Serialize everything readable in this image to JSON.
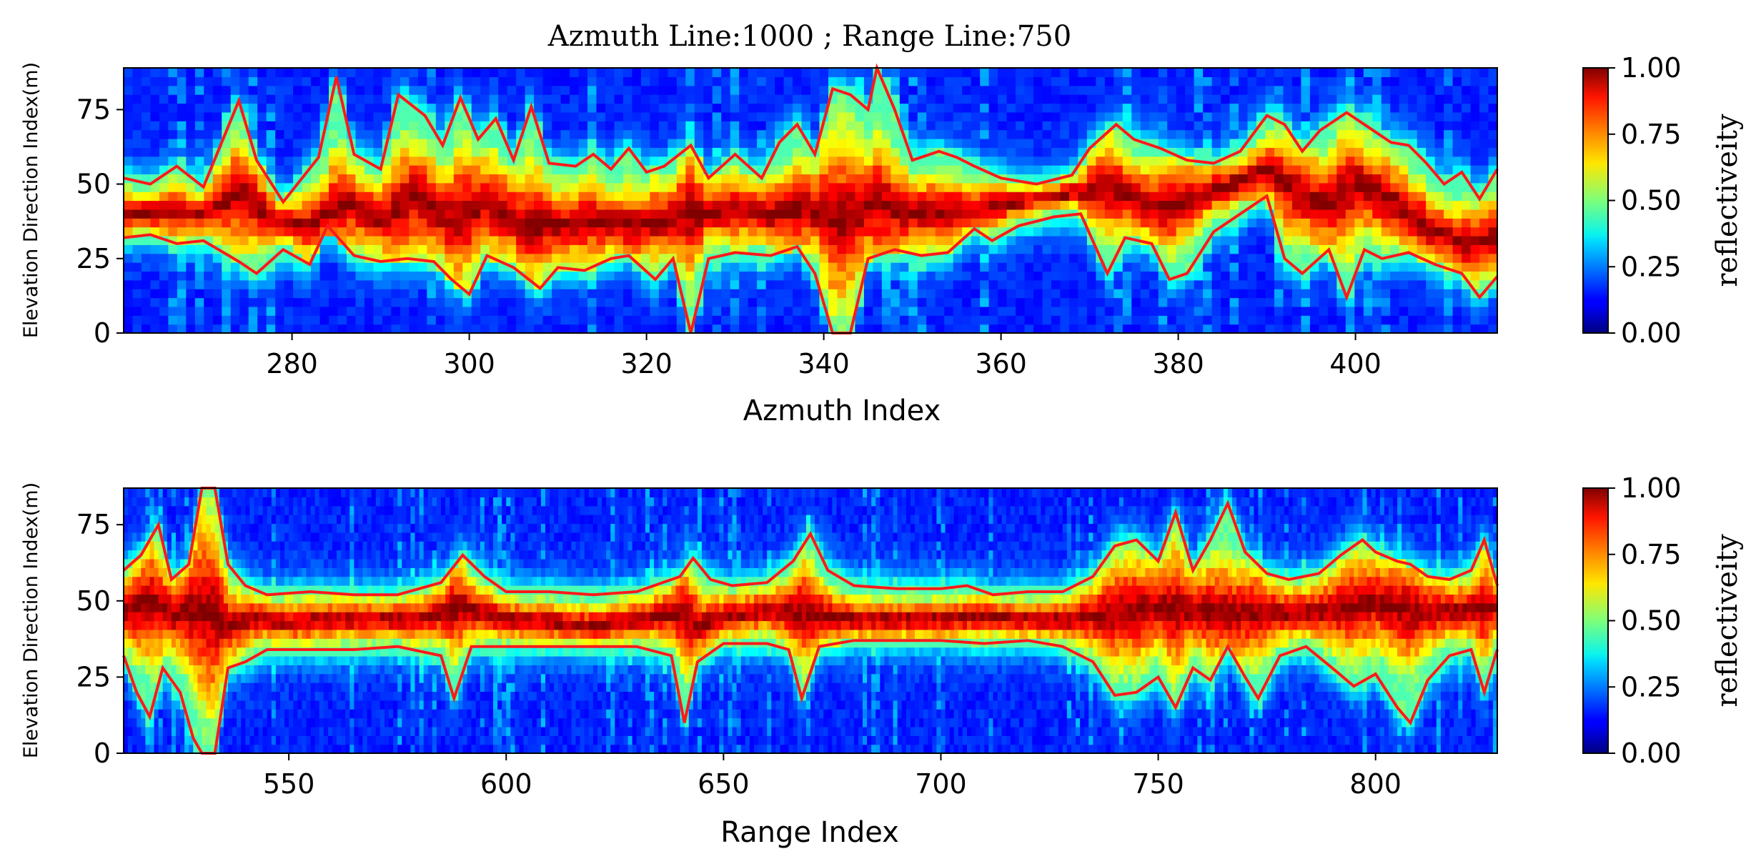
{
  "figure": {
    "title": "Azmuth Line:1000 ; Range Line:750"
  },
  "colors": {
    "colormap": "jet",
    "contour": "#ff1a1a"
  },
  "chart_data": [
    {
      "type": "heatmap",
      "name": "azimuth-profile",
      "xlabel": "Azmuth Index",
      "ylabel": "Elevation Direction Index(m)",
      "xlim": [
        261,
        416
      ],
      "ylim": [
        0,
        89
      ],
      "xticks": [
        280,
        300,
        320,
        340,
        360,
        380,
        400
      ],
      "yticks": [
        0,
        25,
        50,
        75
      ],
      "colorbar": {
        "label": "reflectiveity",
        "range": [
          0,
          1
        ],
        "ticks": [
          "0.00",
          "0.25",
          "0.50",
          "0.75",
          "1.00"
        ]
      },
      "center_profile": [
        [
          261,
          40
        ],
        [
          266,
          41
        ],
        [
          270,
          40
        ],
        [
          274,
          47
        ],
        [
          278,
          38
        ],
        [
          282,
          36
        ],
        [
          286,
          44
        ],
        [
          290,
          38
        ],
        [
          294,
          46
        ],
        [
          298,
          38
        ],
        [
          302,
          44
        ],
        [
          306,
          37
        ],
        [
          310,
          36
        ],
        [
          314,
          38
        ],
        [
          318,
          36
        ],
        [
          322,
          38
        ],
        [
          325,
          40
        ],
        [
          330,
          42
        ],
        [
          334,
          40
        ],
        [
          338,
          42
        ],
        [
          342,
          38
        ],
        [
          346,
          44
        ],
        [
          350,
          40
        ],
        [
          354,
          41
        ],
        [
          358,
          42
        ],
        [
          362,
          44
        ],
        [
          366,
          46
        ],
        [
          370,
          48
        ],
        [
          372,
          50
        ],
        [
          376,
          44
        ],
        [
          379,
          42
        ],
        [
          382,
          46
        ],
        [
          386,
          50
        ],
        [
          390,
          55
        ],
        [
          393,
          48
        ],
        [
          397,
          42
        ],
        [
          400,
          50
        ],
        [
          404,
          45
        ],
        [
          408,
          36
        ],
        [
          412,
          30
        ],
        [
          416,
          32
        ]
      ],
      "upper_contour": [
        [
          261,
          52
        ],
        [
          264,
          50
        ],
        [
          267,
          56
        ],
        [
          270,
          49
        ],
        [
          274,
          78
        ],
        [
          276,
          58
        ],
        [
          279,
          44
        ],
        [
          283,
          59
        ],
        [
          285,
          86
        ],
        [
          287,
          60
        ],
        [
          290,
          55
        ],
        [
          292,
          80
        ],
        [
          295,
          73
        ],
        [
          297,
          63
        ],
        [
          299,
          79
        ],
        [
          301,
          65
        ],
        [
          303,
          72
        ],
        [
          305,
          58
        ],
        [
          307,
          76
        ],
        [
          309,
          57
        ],
        [
          312,
          56
        ],
        [
          314,
          60
        ],
        [
          316,
          55
        ],
        [
          318,
          62
        ],
        [
          320,
          54
        ],
        [
          322,
          56
        ],
        [
          325,
          63
        ],
        [
          327,
          52
        ],
        [
          330,
          60
        ],
        [
          333,
          52
        ],
        [
          335,
          64
        ],
        [
          337,
          70
        ],
        [
          339,
          60
        ],
        [
          341,
          82
        ],
        [
          343,
          80
        ],
        [
          345,
          75
        ],
        [
          346,
          89
        ],
        [
          348,
          75
        ],
        [
          350,
          58
        ],
        [
          353,
          61
        ],
        [
          355,
          59
        ],
        [
          357,
          56
        ],
        [
          360,
          52
        ],
        [
          364,
          50
        ],
        [
          368,
          53
        ],
        [
          370,
          62
        ],
        [
          373,
          70
        ],
        [
          375,
          65
        ],
        [
          378,
          62
        ],
        [
          381,
          58
        ],
        [
          384,
          57
        ],
        [
          387,
          61
        ],
        [
          390,
          73
        ],
        [
          392,
          70
        ],
        [
          394,
          61
        ],
        [
          396,
          68
        ],
        [
          399,
          74
        ],
        [
          401,
          70
        ],
        [
          404,
          64
        ],
        [
          406,
          63
        ],
        [
          408,
          57
        ],
        [
          410,
          50
        ],
        [
          412,
          54
        ],
        [
          414,
          45
        ],
        [
          416,
          55
        ]
      ],
      "lower_contour": [
        [
          261,
          32
        ],
        [
          264,
          33
        ],
        [
          267,
          30
        ],
        [
          270,
          31
        ],
        [
          274,
          24
        ],
        [
          276,
          20
        ],
        [
          279,
          28
        ],
        [
          282,
          23
        ],
        [
          284,
          36
        ],
        [
          287,
          26
        ],
        [
          290,
          24
        ],
        [
          293,
          25
        ],
        [
          296,
          24
        ],
        [
          298,
          18
        ],
        [
          300,
          13
        ],
        [
          302,
          26
        ],
        [
          305,
          22
        ],
        [
          308,
          15
        ],
        [
          310,
          22
        ],
        [
          313,
          21
        ],
        [
          316,
          25
        ],
        [
          318,
          26
        ],
        [
          321,
          18
        ],
        [
          323,
          25
        ],
        [
          325,
          0
        ],
        [
          327,
          25
        ],
        [
          330,
          27
        ],
        [
          334,
          26
        ],
        [
          337,
          29
        ],
        [
          339,
          20
        ],
        [
          341,
          0
        ],
        [
          343,
          0
        ],
        [
          345,
          25
        ],
        [
          348,
          28
        ],
        [
          351,
          26
        ],
        [
          354,
          27
        ],
        [
          357,
          35
        ],
        [
          359,
          31
        ],
        [
          362,
          36
        ],
        [
          366,
          39
        ],
        [
          369,
          40
        ],
        [
          372,
          20
        ],
        [
          374,
          32
        ],
        [
          377,
          30
        ],
        [
          379,
          18
        ],
        [
          381,
          20
        ],
        [
          384,
          34
        ],
        [
          387,
          40
        ],
        [
          390,
          46
        ],
        [
          392,
          25
        ],
        [
          394,
          20
        ],
        [
          397,
          28
        ],
        [
          399,
          12
        ],
        [
          401,
          28
        ],
        [
          403,
          25
        ],
        [
          406,
          27
        ],
        [
          409,
          23
        ],
        [
          412,
          20
        ],
        [
          414,
          12
        ],
        [
          416,
          19
        ]
      ]
    },
    {
      "type": "heatmap",
      "name": "range-profile",
      "xlabel": "Range Index",
      "ylabel": "Elevation Direction Index(m)",
      "xlim": [
        512,
        828
      ],
      "ylim": [
        0,
        87
      ],
      "xticks": [
        550,
        600,
        650,
        700,
        750,
        800
      ],
      "yticks": [
        0,
        25,
        50,
        75
      ],
      "colorbar": {
        "label": "reflectiveity",
        "range": [
          0,
          1
        ],
        "ticks": [
          "0.00",
          "0.25",
          "0.50",
          "0.75",
          "1.00"
        ]
      },
      "center_profile": [
        [
          512,
          46
        ],
        [
          518,
          50
        ],
        [
          524,
          45
        ],
        [
          530,
          48
        ],
        [
          536,
          42
        ],
        [
          542,
          44
        ],
        [
          550,
          43
        ],
        [
          560,
          44
        ],
        [
          570,
          44
        ],
        [
          580,
          44
        ],
        [
          590,
          48
        ],
        [
          600,
          44
        ],
        [
          610,
          43
        ],
        [
          620,
          42
        ],
        [
          630,
          44
        ],
        [
          640,
          46
        ],
        [
          645,
          42
        ],
        [
          650,
          45
        ],
        [
          660,
          47
        ],
        [
          670,
          46
        ],
        [
          680,
          44
        ],
        [
          690,
          44
        ],
        [
          700,
          44
        ],
        [
          710,
          45
        ],
        [
          720,
          44
        ],
        [
          730,
          44
        ],
        [
          740,
          46
        ],
        [
          750,
          48
        ],
        [
          760,
          47
        ],
        [
          770,
          46
        ],
        [
          780,
          46
        ],
        [
          790,
          47
        ],
        [
          800,
          50
        ],
        [
          810,
          46
        ],
        [
          820,
          47
        ],
        [
          828,
          48
        ]
      ],
      "upper_contour": [
        [
          512,
          60
        ],
        [
          516,
          65
        ],
        [
          520,
          75
        ],
        [
          523,
          57
        ],
        [
          527,
          62
        ],
        [
          530,
          87
        ],
        [
          533,
          87
        ],
        [
          536,
          62
        ],
        [
          540,
          55
        ],
        [
          545,
          52
        ],
        [
          555,
          53
        ],
        [
          565,
          52
        ],
        [
          575,
          52
        ],
        [
          585,
          56
        ],
        [
          590,
          65
        ],
        [
          595,
          58
        ],
        [
          600,
          53
        ],
        [
          610,
          53
        ],
        [
          620,
          52
        ],
        [
          630,
          53
        ],
        [
          640,
          58
        ],
        [
          643,
          64
        ],
        [
          647,
          57
        ],
        [
          652,
          55
        ],
        [
          660,
          56
        ],
        [
          666,
          63
        ],
        [
          670,
          72
        ],
        [
          674,
          60
        ],
        [
          680,
          55
        ],
        [
          690,
          54
        ],
        [
          700,
          54
        ],
        [
          706,
          55
        ],
        [
          712,
          52
        ],
        [
          720,
          53
        ],
        [
          728,
          53
        ],
        [
          735,
          58
        ],
        [
          740,
          68
        ],
        [
          745,
          70
        ],
        [
          750,
          63
        ],
        [
          754,
          79
        ],
        [
          758,
          60
        ],
        [
          762,
          70
        ],
        [
          766,
          82
        ],
        [
          770,
          66
        ],
        [
          775,
          59
        ],
        [
          780,
          57
        ],
        [
          787,
          59
        ],
        [
          792,
          65
        ],
        [
          797,
          70
        ],
        [
          800,
          66
        ],
        [
          805,
          63
        ],
        [
          808,
          62
        ],
        [
          812,
          58
        ],
        [
          817,
          57
        ],
        [
          822,
          60
        ],
        [
          825,
          70
        ],
        [
          828,
          55
        ]
      ],
      "lower_contour": [
        [
          512,
          32
        ],
        [
          515,
          20
        ],
        [
          518,
          12
        ],
        [
          521,
          28
        ],
        [
          525,
          20
        ],
        [
          528,
          5
        ],
        [
          530,
          0
        ],
        [
          533,
          0
        ],
        [
          536,
          28
        ],
        [
          540,
          30
        ],
        [
          545,
          34
        ],
        [
          555,
          34
        ],
        [
          565,
          34
        ],
        [
          575,
          35
        ],
        [
          585,
          32
        ],
        [
          588,
          18
        ],
        [
          592,
          35
        ],
        [
          600,
          35
        ],
        [
          610,
          35
        ],
        [
          620,
          35
        ],
        [
          630,
          35
        ],
        [
          638,
          32
        ],
        [
          641,
          10
        ],
        [
          644,
          30
        ],
        [
          650,
          36
        ],
        [
          660,
          36
        ],
        [
          665,
          34
        ],
        [
          668,
          18
        ],
        [
          672,
          35
        ],
        [
          680,
          37
        ],
        [
          690,
          37
        ],
        [
          700,
          37
        ],
        [
          710,
          36
        ],
        [
          720,
          37
        ],
        [
          728,
          35
        ],
        [
          735,
          30
        ],
        [
          740,
          19
        ],
        [
          745,
          20
        ],
        [
          750,
          25
        ],
        [
          754,
          15
        ],
        [
          758,
          28
        ],
        [
          762,
          24
        ],
        [
          766,
          35
        ],
        [
          770,
          25
        ],
        [
          773,
          18
        ],
        [
          778,
          32
        ],
        [
          784,
          35
        ],
        [
          790,
          28
        ],
        [
          795,
          22
        ],
        [
          800,
          26
        ],
        [
          805,
          15
        ],
        [
          808,
          10
        ],
        [
          812,
          24
        ],
        [
          817,
          32
        ],
        [
          822,
          34
        ],
        [
          825,
          20
        ],
        [
          828,
          34
        ]
      ]
    }
  ]
}
